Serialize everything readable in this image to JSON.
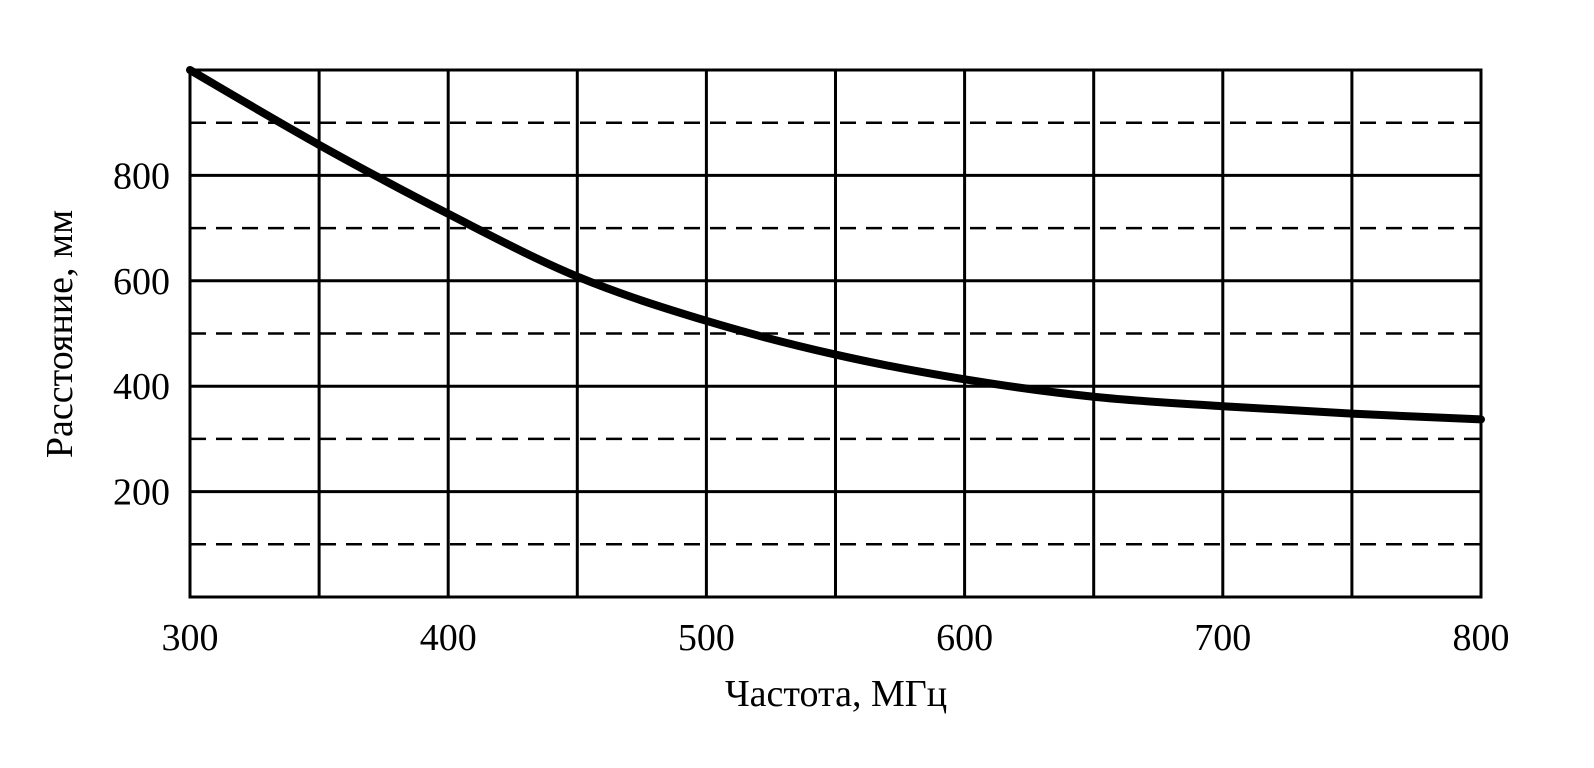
{
  "chart_data": {
    "type": "line",
    "title": "",
    "xlabel": "Частота, МГц",
    "ylabel": "Расстояние, мм",
    "xlim": [
      300,
      800
    ],
    "ylim": [
      0,
      1000
    ],
    "x_ticks": [
      300,
      400,
      500,
      600,
      700,
      800
    ],
    "x_tick_labels": [
      "300",
      "400",
      "500",
      "600",
      "700",
      "800"
    ],
    "x_grid": [
      300,
      350,
      400,
      450,
      500,
      550,
      600,
      650,
      700,
      750,
      800
    ],
    "y_ticks": [
      200,
      400,
      600,
      800
    ],
    "y_tick_labels": [
      "200",
      "400",
      "600",
      "800"
    ],
    "y_grid_major": [
      0,
      200,
      400,
      600,
      800,
      1000
    ],
    "y_grid_minor_dashed": [
      100,
      300,
      500,
      700,
      900
    ],
    "grid": true,
    "legend": null,
    "series": [
      {
        "name": "Расстояние",
        "color": "#000000",
        "x": [
          300,
          350,
          400,
          450,
          500,
          550,
          600,
          650,
          700,
          750,
          800
        ],
        "values": [
          1000,
          858,
          727,
          608,
          524,
          460,
          413,
          380,
          362,
          348,
          337
        ]
      }
    ]
  },
  "colors": {
    "background": "#ffffff",
    "line": "#000000",
    "grid": "#000000"
  }
}
